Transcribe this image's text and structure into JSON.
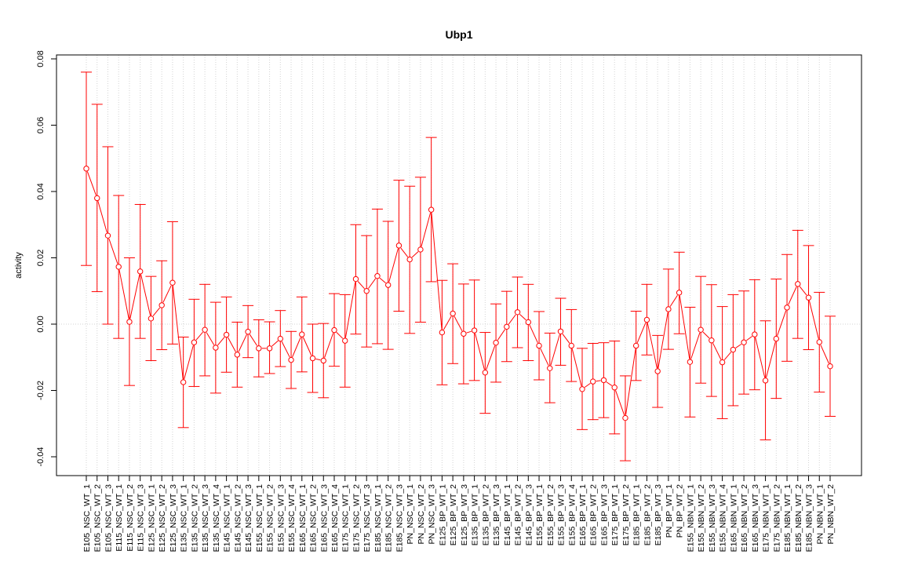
{
  "chart_data": {
    "type": "line",
    "title": "Ubp1",
    "xlabel": "",
    "ylabel": "activity",
    "ylim": [
      -0.045,
      0.081
    ],
    "yticks": [
      -0.04,
      -0.02,
      0.0,
      0.02,
      0.04,
      0.06,
      0.08
    ],
    "ytick_labels": [
      "-0.04",
      "-0.02",
      "0.00",
      "0.02",
      "0.04",
      "0.06",
      "0.08"
    ],
    "grid": "vertical dotted at each category; dotted horizontal line at 0",
    "series_color": "#ff0000",
    "categories": [
      "E105_NSC_WT_1",
      "E105_NSC_WT_2",
      "E105_NSC_WT_3",
      "E115_NSC_WT_1",
      "E115_NSC_WT_2",
      "E115_NSC_WT_3",
      "E125_NSC_WT_1",
      "E125_NSC_WT_2",
      "E125_NSC_WT_3",
      "E135_NSC_WT_1",
      "E135_NSC_WT_2",
      "E135_NSC_WT_3",
      "E135_NSC_WT_4",
      "E145_NSC_WT_1",
      "E145_NSC_WT_2",
      "E145_NSC_WT_3",
      "E155_NSC_WT_1",
      "E155_NSC_WT_2",
      "E155_NSC_WT_3",
      "E155_NSC_WT_4",
      "E165_NSC_WT_1",
      "E165_NSC_WT_2",
      "E165_NSC_WT_3",
      "E165_NSC_WT_4",
      "E175_NSC_WT_1",
      "E175_NSC_WT_2",
      "E175_NSC_WT_3",
      "E185_NSC_WT_1",
      "E185_NSC_WT_2",
      "E185_NSC_WT_3",
      "PN_NSC_WT_1",
      "PN_NSC_WT_2",
      "PN_NSC_WT_3",
      "E125_BP_WT_1",
      "E125_BP_WT_2",
      "E125_BP_WT_3",
      "E135_BP_WT_1",
      "E135_BP_WT_2",
      "E135_BP_WT_3",
      "E145_BP_WT_1",
      "E145_BP_WT_2",
      "E145_BP_WT_3",
      "E155_BP_WT_1",
      "E155_BP_WT_2",
      "E155_BP_WT_3",
      "E155_BP_WT_4",
      "E165_BP_WT_1",
      "E165_BP_WT_2",
      "E165_BP_WT_3",
      "E175_BP_WT_1",
      "E175_BP_WT_2",
      "E185_BP_WT_1",
      "E185_BP_WT_2",
      "E185_BP_WT_3",
      "PN_BP_WT_1",
      "PN_BP_WT_2",
      "E155_NBN_WT_1",
      "E155_NBN_WT_2",
      "E155_NBN_WT_3",
      "E155_NBN_WT_4",
      "E165_NBN_WT_1",
      "E165_NBN_WT_2",
      "E165_NBN_WT_3",
      "E175_NBN_WT_1",
      "E175_NBN_WT_2",
      "E185_NBN_WT_1",
      "E185_NBN_WT_2",
      "E185_NBN_WT_3",
      "PN_NBN_WT_1",
      "PN_NBN_WT_2"
    ],
    "values": [
      0.0469,
      0.038,
      0.0267,
      0.0173,
      0.0007,
      0.0159,
      0.0017,
      0.0057,
      0.0125,
      -0.0175,
      -0.0055,
      -0.0017,
      -0.0071,
      -0.0032,
      -0.0092,
      -0.0023,
      -0.0073,
      -0.0073,
      -0.0044,
      -0.0108,
      -0.0031,
      -0.0103,
      -0.011,
      -0.0018,
      -0.005,
      0.0136,
      0.01,
      0.0145,
      0.0118,
      0.0237,
      0.0195,
      0.0225,
      0.0345,
      -0.0025,
      0.0032,
      -0.0029,
      -0.0019,
      -0.0146,
      -0.0056,
      -0.0008,
      0.0036,
      0.0006,
      -0.0065,
      -0.0133,
      -0.0022,
      -0.0065,
      -0.0196,
      -0.0173,
      -0.0169,
      -0.0191,
      -0.0283,
      -0.0065,
      0.0013,
      -0.0142,
      0.0045,
      0.0095,
      -0.0114,
      -0.0017,
      -0.0049,
      -0.0115,
      -0.0077,
      -0.0055,
      -0.0031,
      -0.017,
      -0.0044,
      0.005,
      0.0121,
      0.008,
      -0.0054,
      -0.0127
    ],
    "upper": [
      0.076,
      0.0663,
      0.0535,
      0.0388,
      0.02,
      0.0361,
      0.0144,
      0.0191,
      0.0309,
      -0.0039,
      0.0075,
      0.012,
      0.0066,
      0.0082,
      0.0006,
      0.0056,
      0.0013,
      0.0007,
      0.0041,
      -0.0022,
      0.0082,
      0.0,
      0.0002,
      0.0092,
      0.0089,
      0.03,
      0.0267,
      0.0347,
      0.031,
      0.0434,
      0.0416,
      0.0443,
      0.0563,
      0.0132,
      0.0182,
      0.0121,
      0.0133,
      -0.0025,
      0.0061,
      0.0099,
      0.0142,
      0.012,
      0.0038,
      -0.0027,
      0.0078,
      0.0044,
      -0.0073,
      -0.0058,
      -0.0056,
      -0.0051,
      -0.0156,
      0.0039,
      0.012,
      -0.0034,
      0.0166,
      0.0217,
      0.0051,
      0.0144,
      0.0119,
      0.0053,
      0.0089,
      0.01,
      0.0134,
      0.001,
      0.0136,
      0.021,
      0.0283,
      0.0237,
      0.0096,
      0.0024
    ],
    "lower": [
      0.0177,
      0.0098,
      0.0,
      -0.0043,
      -0.0185,
      -0.0043,
      -0.011,
      -0.0077,
      -0.006,
      -0.0312,
      -0.0188,
      -0.0156,
      -0.0208,
      -0.0145,
      -0.019,
      -0.0101,
      -0.0159,
      -0.0149,
      -0.0128,
      -0.0194,
      -0.0144,
      -0.0206,
      -0.0222,
      -0.0127,
      -0.019,
      -0.003,
      -0.0069,
      -0.0059,
      -0.0076,
      0.0039,
      -0.0028,
      0.0006,
      0.0128,
      -0.0183,
      -0.0119,
      -0.018,
      -0.017,
      -0.0269,
      -0.0175,
      -0.0113,
      -0.0071,
      -0.011,
      -0.0168,
      -0.0237,
      -0.0124,
      -0.0173,
      -0.0318,
      -0.0288,
      -0.0282,
      -0.0331,
      -0.0412,
      -0.017,
      -0.0093,
      -0.0251,
      -0.0076,
      -0.0029,
      -0.028,
      -0.0178,
      -0.0218,
      -0.0285,
      -0.0246,
      -0.0211,
      -0.0198,
      -0.0349,
      -0.0224,
      -0.0112,
      -0.0043,
      -0.0077,
      -0.0205,
      -0.0278
    ]
  }
}
